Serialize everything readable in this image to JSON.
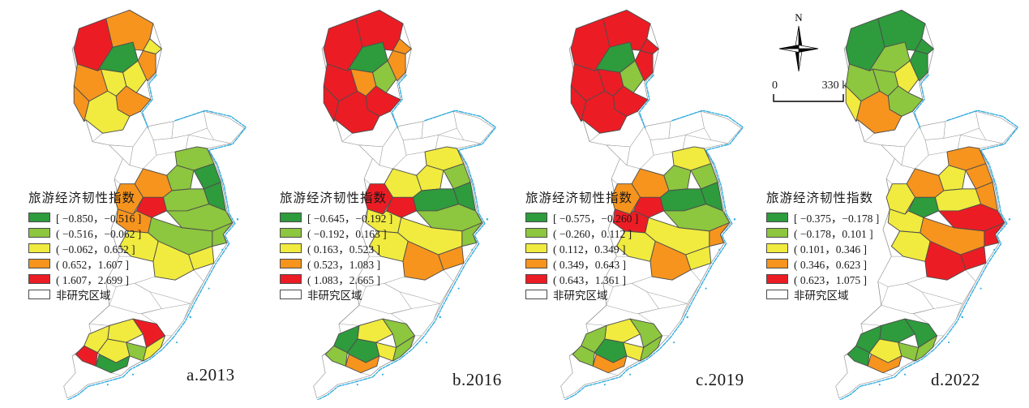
{
  "figure": {
    "legend_title": "旅游经济韧性指数",
    "non_study_label": "非研究区域",
    "north_arrow_label": "N",
    "scale_bar": {
      "start": "0",
      "end": "330 km"
    }
  },
  "palette": {
    "classes": [
      "#2e9b3d",
      "#8dc63f",
      "#f0eb3e",
      "#f7941e",
      "#ec1c24"
    ],
    "non_study": "#ffffff",
    "coastline": "#29abe2",
    "study_border": "#4d4d4d",
    "non_study_border": "#8a8a8a"
  },
  "maps": [
    {
      "caption": "a.2013",
      "legend": [
        "[ −0.850，−0.516 ]",
        "( −0.516，−0.062 ]",
        "( −0.062，0.652 ]",
        "( 0.652，1.607 ]",
        "( 1.607，2.699 ]"
      ],
      "regions": {
        "n0": 4,
        "n1": 3,
        "n2": 0,
        "n3": 2,
        "n4": 3,
        "n5": 2,
        "n6": 3,
        "n7": 2,
        "n8": 3,
        "n9": 3,
        "n10": 2,
        "m0": 1,
        "m1": 0,
        "m2": 1,
        "m3": 3,
        "m4": 3,
        "m5": 4,
        "m6": 3,
        "m7": 1,
        "m8": 0,
        "m9": 1,
        "m10": 1,
        "m11": 1,
        "m12": 2,
        "m13": 2,
        "m14": 2,
        "s0": 2,
        "s1": 4,
        "s2": 2,
        "s3": 2,
        "s4": 1,
        "s5": 2,
        "s6": 0,
        "s7": 4
      }
    },
    {
      "caption": "b.2016",
      "legend": [
        "[ −0.645，−0.192 ]",
        "( −0.192，0.163 ]",
        "( 0.163，0.523 ]",
        "( 0.523，1.083 ]",
        "( 1.083，2.665 ]"
      ],
      "regions": {
        "n0": 4,
        "n1": 4,
        "n2": 0,
        "n3": 1,
        "n4": 3,
        "n5": 3,
        "n6": 4,
        "n7": 3,
        "n8": 4,
        "n9": 4,
        "n10": 4,
        "m0": 2,
        "m1": 1,
        "m2": 2,
        "m3": 2,
        "m4": 4,
        "m5": 4,
        "m6": 2,
        "m7": 0,
        "m8": 0,
        "m9": 1,
        "m10": 1,
        "m11": 2,
        "m12": 3,
        "m13": 2,
        "m14": 3,
        "s0": 2,
        "s1": 1,
        "s2": 0,
        "s3": 0,
        "s4": 2,
        "s5": 1,
        "s6": 3,
        "s7": 1
      }
    },
    {
      "caption": "c.2019",
      "legend": [
        "[ −0.575，−0.260 ]",
        "( −0.260，0.112 ]",
        "( 0.112，0.349 ]",
        "( 0.349，0.643 ]",
        "( 0.643，1.361 ]"
      ],
      "regions": {
        "n0": 4,
        "n1": 4,
        "n2": 0,
        "n3": 1,
        "n4": 4,
        "n5": 4,
        "n6": 4,
        "n7": 4,
        "n8": 4,
        "n9": 4,
        "n10": 4,
        "m0": 2,
        "m1": 1,
        "m2": 1,
        "m3": 3,
        "m4": 3,
        "m5": 4,
        "m6": 4,
        "m7": 0,
        "m8": 0,
        "m9": 1,
        "m10": 3,
        "m11": 2,
        "m12": 2,
        "m13": 2,
        "m14": 3,
        "s0": 2,
        "s1": 1,
        "s2": 1,
        "s3": 0,
        "s4": 2,
        "s5": 1,
        "s6": 3,
        "s7": 1
      }
    },
    {
      "caption": "d.2022",
      "legend": [
        "[ −0.375，−0.178 ]",
        "( −0.178，0.101 ]",
        "( 0.101，0.346 ]",
        "( 0.346，0.623 ]",
        "( 0.623，1.075 ]"
      ],
      "regions": {
        "n0": 0,
        "n1": 0,
        "n2": 1,
        "n3": 2,
        "n4": 0,
        "n5": 0,
        "n6": 1,
        "n7": 1,
        "n8": 1,
        "n9": 2,
        "n10": 3,
        "m0": 3,
        "m1": 3,
        "m2": 2,
        "m3": 3,
        "m4": 2,
        "m5": 0,
        "m6": 2,
        "m7": 2,
        "m8": 3,
        "m9": 4,
        "m10": 4,
        "m11": 3,
        "m12": 4,
        "m13": 2,
        "m14": 4,
        "s0": 0,
        "s1": 0,
        "s2": 0,
        "s3": 2,
        "s4": 1,
        "s5": 1,
        "s6": 3,
        "s7": 0
      }
    }
  ]
}
